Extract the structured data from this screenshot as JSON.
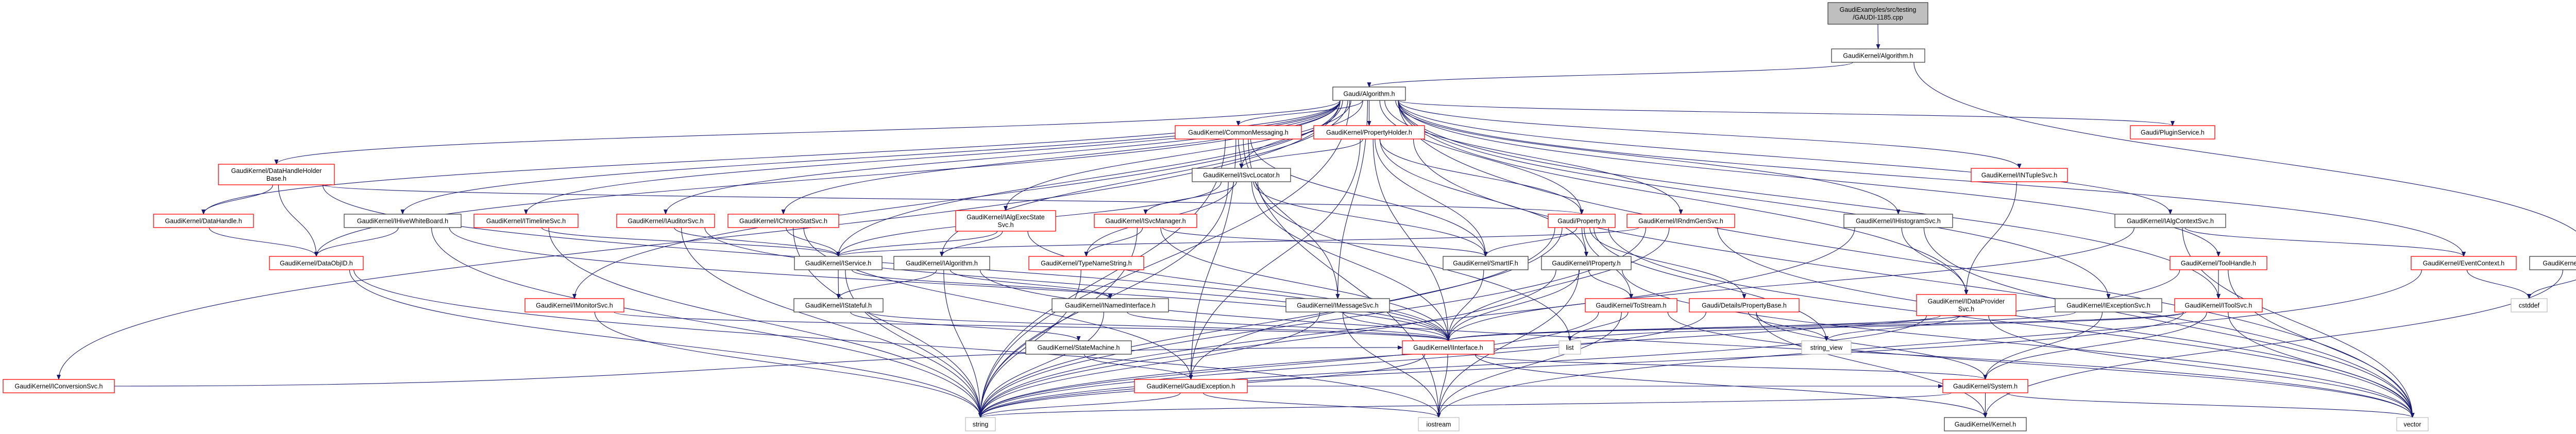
{
  "colors": {
    "edge": "#191970",
    "root_fill": "#bfbfbf",
    "root_border": "#404040",
    "normal_border": "#404040",
    "truncated_border": "#ff0000",
    "external_border": "#bfbfbf",
    "node_fill": "#ffffff"
  },
  "nodes": [
    {
      "id": "root",
      "kind": "root",
      "label": [
        "GaudiExamples/src/testing",
        "/GAUDI-1185.cpp"
      ]
    },
    {
      "id": "gk_algorithm",
      "kind": "normal",
      "label": [
        "GaudiKernel/Algorithm.h"
      ]
    },
    {
      "id": "gaudi_algorithm",
      "kind": "normal",
      "label": [
        "Gaudi/Algorithm.h"
      ]
    },
    {
      "id": "common_messaging",
      "kind": "truncated",
      "label": [
        "GaudiKernel/CommonMessaging.h"
      ]
    },
    {
      "id": "property_holder",
      "kind": "truncated",
      "label": [
        "GaudiKernel/PropertyHolder.h"
      ]
    },
    {
      "id": "plugin_service",
      "kind": "truncated",
      "label": [
        "Gaudi/PluginService.h"
      ]
    },
    {
      "id": "data_handle_holder_base",
      "kind": "truncated",
      "label": [
        "GaudiKernel/DataHandleHolder",
        "Base.h"
      ]
    },
    {
      "id": "isvc_locator",
      "kind": "normal",
      "label": [
        "GaudiKernel/ISvcLocator.h"
      ]
    },
    {
      "id": "intuple_svc",
      "kind": "truncated",
      "label": [
        "GaudiKernel/INTupleSvc.h"
      ]
    },
    {
      "id": "data_handle",
      "kind": "truncated",
      "label": [
        "GaudiKernel/DataHandle.h"
      ]
    },
    {
      "id": "ihive_whiteboard",
      "kind": "normal",
      "label": [
        "GaudiKernel/IHiveWhiteBoard.h"
      ]
    },
    {
      "id": "itimeline_svc",
      "kind": "truncated",
      "label": [
        "GaudiKernel/ITimelineSvc.h"
      ]
    },
    {
      "id": "iauditor_svc",
      "kind": "truncated",
      "label": [
        "GaudiKernel/IAuditorSvc.h"
      ]
    },
    {
      "id": "ichronostat_svc",
      "kind": "truncated",
      "label": [
        "GaudiKernel/IChronoStatSvc.h"
      ]
    },
    {
      "id": "ialg_exec_state_svc",
      "kind": "truncated",
      "label": [
        "GaudiKernel/IAlgExecState",
        "Svc.h"
      ]
    },
    {
      "id": "isvc_manager",
      "kind": "truncated",
      "label": [
        "GaudiKernel/ISvcManager.h"
      ]
    },
    {
      "id": "gaudi_property",
      "kind": "truncated",
      "label": [
        "Gaudi/Property.h"
      ]
    },
    {
      "id": "irndm_gen_svc",
      "kind": "truncated",
      "label": [
        "GaudiKernel/IRndmGenSvc.h"
      ]
    },
    {
      "id": "ihistogram_svc",
      "kind": "normal",
      "label": [
        "GaudiKernel/IHistogramSvc.h"
      ]
    },
    {
      "id": "ialg_context_svc",
      "kind": "normal",
      "label": [
        "GaudiKernel/IAlgContextSvc.h"
      ]
    },
    {
      "id": "data_obj_id",
      "kind": "truncated",
      "label": [
        "GaudiKernel/DataObjID.h"
      ]
    },
    {
      "id": "iservice",
      "kind": "normal",
      "label": [
        "GaudiKernel/IService.h"
      ]
    },
    {
      "id": "ialgorithm",
      "kind": "normal",
      "label": [
        "GaudiKernel/IAlgorithm.h"
      ]
    },
    {
      "id": "type_name_string",
      "kind": "truncated",
      "label": [
        "GaudiKernel/TypeNameString.h"
      ]
    },
    {
      "id": "smart_if",
      "kind": "normal",
      "label": [
        "GaudiKernel/SmartIF.h"
      ]
    },
    {
      "id": "iproperty",
      "kind": "normal",
      "label": [
        "GaudiKernel/IProperty.h"
      ]
    },
    {
      "id": "tool_handle",
      "kind": "truncated",
      "label": [
        "GaudiKernel/ToolHandle.h"
      ]
    },
    {
      "id": "event_context",
      "kind": "truncated",
      "label": [
        "GaudiKernel/EventContext.h"
      ]
    },
    {
      "id": "thread_local_context",
      "kind": "normal",
      "label": [
        "GaudiKernel/ThreadLocalContext.h"
      ]
    },
    {
      "id": "imonitor_svc",
      "kind": "truncated",
      "label": [
        "GaudiKernel/IMonitorSvc.h"
      ]
    },
    {
      "id": "istateful",
      "kind": "normal",
      "label": [
        "GaudiKernel/IStateful.h"
      ]
    },
    {
      "id": "inamed_interface",
      "kind": "normal",
      "label": [
        "GaudiKernel/INamedInterface.h"
      ]
    },
    {
      "id": "imessage_svc",
      "kind": "normal",
      "label": [
        "GaudiKernel/IMessageSvc.h"
      ]
    },
    {
      "id": "to_stream",
      "kind": "truncated",
      "label": [
        "GaudiKernel/ToStream.h"
      ]
    },
    {
      "id": "property_base",
      "kind": "truncated",
      "label": [
        "Gaudi/Details/PropertyBase.h"
      ]
    },
    {
      "id": "idata_provider_svc",
      "kind": "truncated",
      "label": [
        "GaudiKernel/IDataProvider",
        "Svc.h"
      ]
    },
    {
      "id": "iexception_svc",
      "kind": "normal",
      "label": [
        "GaudiKernel/IExceptionSvc.h"
      ]
    },
    {
      "id": "itool_svc",
      "kind": "truncated",
      "label": [
        "GaudiKernel/IToolSvc.h"
      ]
    },
    {
      "id": "cstddef",
      "kind": "external",
      "label": [
        "cstddef"
      ]
    },
    {
      "id": "state_machine",
      "kind": "normal",
      "label": [
        "GaudiKernel/StateMachine.h"
      ]
    },
    {
      "id": "iinterface",
      "kind": "truncated",
      "label": [
        "GaudiKernel/IInterface.h"
      ]
    },
    {
      "id": "list",
      "kind": "external",
      "label": [
        "list"
      ]
    },
    {
      "id": "string_view",
      "kind": "external",
      "label": [
        "string_view"
      ]
    },
    {
      "id": "iconversion_svc",
      "kind": "truncated",
      "label": [
        "GaudiKernel/IConversionSvc.h"
      ]
    },
    {
      "id": "gaudi_exception",
      "kind": "truncated",
      "label": [
        "GaudiKernel/GaudiException.h"
      ]
    },
    {
      "id": "system",
      "kind": "truncated",
      "label": [
        "GaudiKernel/System.h"
      ]
    },
    {
      "id": "string",
      "kind": "external",
      "label": [
        "string"
      ]
    },
    {
      "id": "iostream",
      "kind": "external",
      "label": [
        "iostream"
      ]
    },
    {
      "id": "kernel",
      "kind": "normal",
      "label": [
        "GaudiKernel/Kernel.h"
      ]
    },
    {
      "id": "vector",
      "kind": "external",
      "label": [
        "vector"
      ]
    }
  ],
  "edges": [
    [
      "root",
      "gk_algorithm"
    ],
    [
      "gk_algorithm",
      "gaudi_algorithm"
    ],
    [
      "gk_algorithm",
      "thread_local_context"
    ],
    [
      "gaudi_algorithm",
      "common_messaging"
    ],
    [
      "gaudi_algorithm",
      "property_holder"
    ],
    [
      "gaudi_algorithm",
      "plugin_service"
    ],
    [
      "gaudi_algorithm",
      "data_handle_holder_base"
    ],
    [
      "gaudi_algorithm",
      "isvc_locator"
    ],
    [
      "gaudi_algorithm",
      "intuple_svc"
    ],
    [
      "gaudi_algorithm",
      "data_handle"
    ],
    [
      "gaudi_algorithm",
      "ihive_whiteboard"
    ],
    [
      "gaudi_algorithm",
      "itimeline_svc"
    ],
    [
      "gaudi_algorithm",
      "iauditor_svc"
    ],
    [
      "gaudi_algorithm",
      "ichronostat_svc"
    ],
    [
      "gaudi_algorithm",
      "ialg_exec_state_svc"
    ],
    [
      "gaudi_algorithm",
      "gaudi_property"
    ],
    [
      "gaudi_algorithm",
      "irndm_gen_svc"
    ],
    [
      "gaudi_algorithm",
      "ihistogram_svc"
    ],
    [
      "gaudi_algorithm",
      "ialg_context_svc"
    ],
    [
      "gaudi_algorithm",
      "data_obj_id"
    ],
    [
      "gaudi_algorithm",
      "iservice"
    ],
    [
      "gaudi_algorithm",
      "ialgorithm"
    ],
    [
      "gaudi_algorithm",
      "tool_handle"
    ],
    [
      "gaudi_algorithm",
      "event_context"
    ],
    [
      "gaudi_algorithm",
      "imonitor_svc"
    ],
    [
      "gaudi_algorithm",
      "imessage_svc"
    ],
    [
      "gaudi_algorithm",
      "iexception_svc"
    ],
    [
      "gaudi_algorithm",
      "itool_svc"
    ],
    [
      "gaudi_algorithm",
      "iconversion_svc"
    ],
    [
      "gaudi_algorithm",
      "idata_provider_svc"
    ],
    [
      "gaudi_algorithm",
      "string"
    ],
    [
      "gaudi_algorithm",
      "vector"
    ],
    [
      "common_messaging",
      "isvc_locator"
    ],
    [
      "common_messaging",
      "imessage_svc"
    ],
    [
      "common_messaging",
      "smart_if"
    ],
    [
      "common_messaging",
      "gaudi_exception"
    ],
    [
      "common_messaging",
      "string"
    ],
    [
      "common_messaging",
      "iostream"
    ],
    [
      "property_holder",
      "isvc_locator"
    ],
    [
      "property_holder",
      "gaudi_property"
    ],
    [
      "property_holder",
      "iproperty"
    ],
    [
      "property_holder",
      "smart_if"
    ],
    [
      "property_holder",
      "gaudi_exception"
    ],
    [
      "property_holder",
      "iinterface"
    ],
    [
      "property_holder",
      "vector"
    ],
    [
      "data_handle_holder_base",
      "data_handle"
    ],
    [
      "data_handle_holder_base",
      "data_obj_id"
    ],
    [
      "data_handle_holder_base",
      "gaudi_property"
    ],
    [
      "data_handle_holder_base",
      "iinterface"
    ],
    [
      "data_handle",
      "data_obj_id"
    ],
    [
      "ihive_whiteboard",
      "data_obj_id"
    ],
    [
      "ihive_whiteboard",
      "iinterface"
    ],
    [
      "ihive_whiteboard",
      "string"
    ],
    [
      "itimeline_svc",
      "iservice"
    ],
    [
      "itimeline_svc",
      "string"
    ],
    [
      "iauditor_svc",
      "iservice"
    ],
    [
      "iauditor_svc",
      "string"
    ],
    [
      "iauditor_svc",
      "iinterface"
    ],
    [
      "ichronostat_svc",
      "iservice"
    ],
    [
      "ichronostat_svc",
      "string"
    ],
    [
      "ichronostat_svc",
      "gaudi_exception"
    ],
    [
      "ialg_exec_state_svc",
      "ialgorithm"
    ],
    [
      "ialg_exec_state_svc",
      "iservice"
    ],
    [
      "ialg_exec_state_svc",
      "iinterface"
    ],
    [
      "isvc_locator",
      "isvc_manager"
    ],
    [
      "isvc_locator",
      "iservice"
    ],
    [
      "isvc_locator",
      "smart_if"
    ],
    [
      "isvc_locator",
      "iinterface"
    ],
    [
      "isvc_locator",
      "string"
    ],
    [
      "isvc_locator",
      "list"
    ],
    [
      "isvc_locator",
      "type_name_string"
    ],
    [
      "isvc_manager",
      "type_name_string"
    ],
    [
      "isvc_manager",
      "smart_if"
    ],
    [
      "isvc_manager",
      "iinterface"
    ],
    [
      "isvc_manager",
      "string"
    ],
    [
      "iservice",
      "istateful"
    ],
    [
      "iservice",
      "inamed_interface"
    ],
    [
      "iservice",
      "string"
    ],
    [
      "ialgorithm",
      "istateful"
    ],
    [
      "ialgorithm",
      "inamed_interface"
    ],
    [
      "ialgorithm",
      "string"
    ],
    [
      "ialgorithm",
      "vector"
    ],
    [
      "istateful",
      "state_machine"
    ],
    [
      "istateful",
      "iinterface"
    ],
    [
      "state_machine",
      "gaudi_exception"
    ],
    [
      "inamed_interface",
      "iinterface"
    ],
    [
      "inamed_interface",
      "string"
    ],
    [
      "type_name_string",
      "string"
    ],
    [
      "imessage_svc",
      "iinterface"
    ],
    [
      "imessage_svc",
      "iostream"
    ],
    [
      "imessage_svc",
      "string"
    ],
    [
      "smart_if",
      "iinterface"
    ],
    [
      "iproperty",
      "iinterface"
    ],
    [
      "iproperty",
      "to_stream"
    ],
    [
      "iproperty",
      "string"
    ],
    [
      "iproperty",
      "vector"
    ],
    [
      "iproperty",
      "iostream"
    ],
    [
      "gaudi_property",
      "property_base"
    ],
    [
      "gaudi_property",
      "iproperty"
    ],
    [
      "gaudi_property",
      "smart_if"
    ],
    [
      "gaudi_property",
      "to_stream"
    ],
    [
      "gaudi_property",
      "string_view"
    ],
    [
      "gaudi_property",
      "gaudi_exception"
    ],
    [
      "gaudi_property",
      "string"
    ],
    [
      "gaudi_property",
      "vector"
    ],
    [
      "to_stream",
      "list"
    ],
    [
      "to_stream",
      "string"
    ],
    [
      "to_stream",
      "vector"
    ],
    [
      "to_stream",
      "iostream"
    ],
    [
      "property_base",
      "string_view"
    ],
    [
      "property_base",
      "system"
    ],
    [
      "property_base",
      "kernel"
    ],
    [
      "property_base",
      "string"
    ],
    [
      "idata_provider_svc",
      "string_view"
    ],
    [
      "idata_provider_svc",
      "iinterface"
    ],
    [
      "idata_provider_svc",
      "string"
    ],
    [
      "idata_provider_svc",
      "vector"
    ],
    [
      "ihistogram_svc",
      "idata_provider_svc"
    ],
    [
      "ihistogram_svc",
      "string"
    ],
    [
      "ihistogram_svc",
      "vector"
    ],
    [
      "intuple_svc",
      "idata_provider_svc"
    ],
    [
      "irndm_gen_svc",
      "iservice"
    ],
    [
      "irndm_gen_svc",
      "iinterface"
    ],
    [
      "irndm_gen_svc",
      "string"
    ],
    [
      "irndm_gen_svc",
      "vector"
    ],
    [
      "iexception_svc",
      "system"
    ],
    [
      "iexception_svc",
      "iinterface"
    ],
    [
      "itool_svc",
      "system"
    ],
    [
      "itool_svc",
      "iinterface"
    ],
    [
      "itool_svc",
      "list"
    ],
    [
      "itool_svc",
      "vector"
    ],
    [
      "itool_svc",
      "string"
    ],
    [
      "tool_handle",
      "itool_svc"
    ],
    [
      "tool_handle",
      "vector"
    ],
    [
      "tool_handle",
      "string"
    ],
    [
      "ialg_context_svc",
      "event_context"
    ],
    [
      "ialg_context_svc",
      "iinterface"
    ],
    [
      "ialg_context_svc",
      "vector"
    ],
    [
      "event_context",
      "cstddef"
    ],
    [
      "event_context",
      "iostream"
    ],
    [
      "thread_local_context",
      "cstddef"
    ],
    [
      "thread_local_context",
      "kernel"
    ],
    [
      "imonitor_svc",
      "iinterface"
    ],
    [
      "imonitor_svc",
      "string"
    ],
    [
      "iconversion_svc",
      "iinterface"
    ],
    [
      "iinterface",
      "system"
    ],
    [
      "iinterface",
      "kernel"
    ],
    [
      "iinterface",
      "string"
    ],
    [
      "iinterface",
      "iostream"
    ],
    [
      "gaudi_exception",
      "system"
    ],
    [
      "gaudi_exception",
      "string"
    ],
    [
      "gaudi_exception",
      "iostream"
    ],
    [
      "system",
      "kernel"
    ],
    [
      "system",
      "string"
    ],
    [
      "system",
      "vector"
    ],
    [
      "data_obj_id",
      "string"
    ],
    [
      "data_obj_id",
      "iostream"
    ]
  ]
}
